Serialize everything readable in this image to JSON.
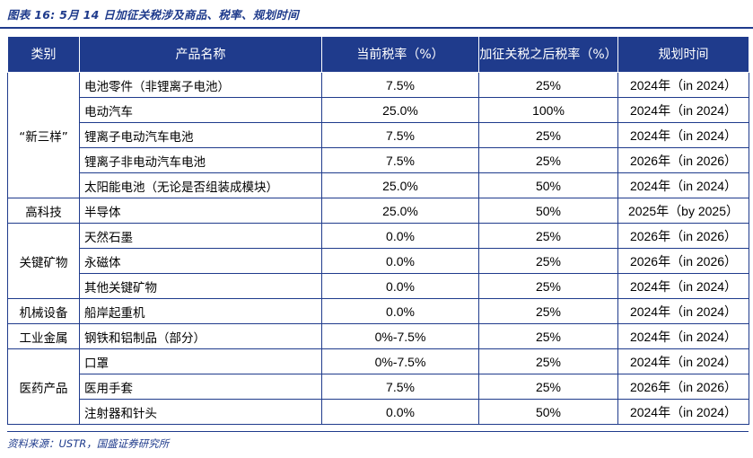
{
  "title": "图表 16:  5月 14 日加征关税涉及商品、税率、规划时间",
  "headers": {
    "category": "类别",
    "product": "产品名称",
    "current_rate": "当前税率（%）",
    "new_rate": "加征关税之后税率（%）",
    "timeline": "规划时间"
  },
  "groups": [
    {
      "category": "“新三样”",
      "rows": [
        {
          "product": "电池零件（非锂离子电池）",
          "current": "7.5%",
          "new": "25%",
          "timeline": "2024年（in 2024）"
        },
        {
          "product": "电动汽车",
          "current": "25.0%",
          "new": "100%",
          "timeline": "2024年（in 2024）"
        },
        {
          "product": "锂离子电动汽车电池",
          "current": "7.5%",
          "new": "25%",
          "timeline": "2024年（in 2024）"
        },
        {
          "product": "锂离子非电动汽车电池",
          "current": "7.5%",
          "new": "25%",
          "timeline": "2026年（in 2026）"
        },
        {
          "product": "太阳能电池（无论是否组装成模块）",
          "current": "25.0%",
          "new": "50%",
          "timeline": "2024年（in 2024）"
        }
      ]
    },
    {
      "category": "高科技",
      "rows": [
        {
          "product": "半导体",
          "current": "25.0%",
          "new": "50%",
          "timeline": "2025年（by 2025）"
        }
      ]
    },
    {
      "category": "关键矿物",
      "rows": [
        {
          "product": "天然石墨",
          "current": "0.0%",
          "new": "25%",
          "timeline": "2026年（in 2026）"
        },
        {
          "product": "永磁体",
          "current": "0.0%",
          "new": "25%",
          "timeline": "2026年（in 2026）"
        },
        {
          "product": "其他关键矿物",
          "current": "0.0%",
          "new": "25%",
          "timeline": "2024年（in 2024）"
        }
      ]
    },
    {
      "category": "机械设备",
      "rows": [
        {
          "product": "船岸起重机",
          "current": "0.0%",
          "new": "25%",
          "timeline": "2024年（in 2024）"
        }
      ]
    },
    {
      "category": "工业金属",
      "rows": [
        {
          "product": "钢铁和铝制品（部分）",
          "current": "0%-7.5%",
          "new": "25%",
          "timeline": "2024年（in 2024）"
        }
      ]
    },
    {
      "category": "医药产品",
      "rows": [
        {
          "product": "口罩",
          "current": "0%-7.5%",
          "new": "25%",
          "timeline": "2024年（in 2024）"
        },
        {
          "product": "医用手套",
          "current": "7.5%",
          "new": "25%",
          "timeline": "2026年（in 2026）"
        },
        {
          "product": "注射器和针头",
          "current": "0.0%",
          "new": "50%",
          "timeline": "2024年（in 2024）"
        }
      ]
    }
  ],
  "source": "资料来源：USTR，国盛证券研究所",
  "colors": {
    "accent": "#1f3b8c"
  }
}
